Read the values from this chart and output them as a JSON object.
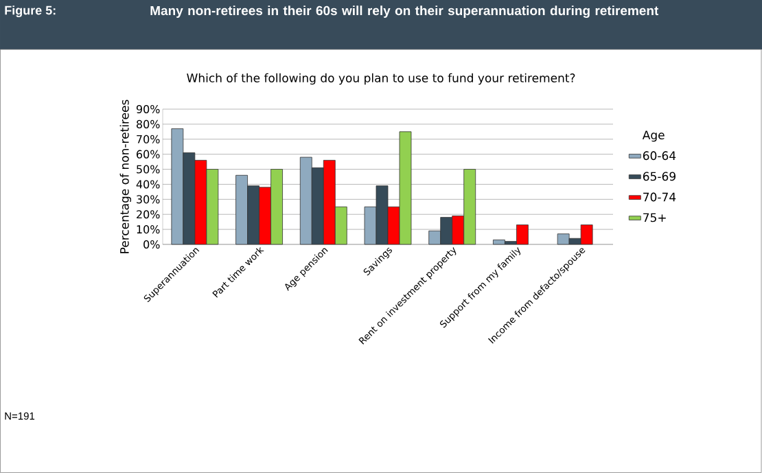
{
  "chart_data": {
    "type": "bar",
    "title": "Many non-retirees in their 60s will rely on their superannuation during retirement",
    "subtitle": "Which of the following do you plan to use to fund your retirement?",
    "ylabel": "Percentage of non-retirees",
    "legend_title": "Age",
    "categories": [
      "Superannuation",
      "Part time work",
      "Age pension",
      "Savings",
      "Rent on investment property",
      "Support from my family",
      "Income from defacto/spouse"
    ],
    "series": [
      {
        "name": "60-64",
        "color": "#8faabf",
        "values": [
          77,
          46,
          58,
          25,
          9,
          3,
          7
        ]
      },
      {
        "name": "65-69",
        "color": "#364b59",
        "values": [
          61,
          39,
          51,
          39,
          18,
          2,
          4
        ]
      },
      {
        "name": "70-74",
        "color": "#ff0000",
        "values": [
          56,
          38,
          56,
          25,
          19,
          13,
          13
        ]
      },
      {
        "name": "75+",
        "color": "#92d050",
        "values": [
          50,
          50,
          25,
          75,
          50,
          null,
          null
        ]
      }
    ],
    "ylim": [
      0,
      90
    ],
    "yticks": [
      {
        "value": 0,
        "label": "0%"
      },
      {
        "value": 10,
        "label": "10%"
      },
      {
        "value": 20,
        "label": "20%"
      },
      {
        "value": 30,
        "label": "30%"
      },
      {
        "value": 40,
        "label": "40%"
      },
      {
        "value": 50,
        "label": "50%"
      },
      {
        "value": 60,
        "label": "60%"
      },
      {
        "value": 70,
        "label": "70%"
      },
      {
        "value": 80,
        "label": "80%"
      },
      {
        "value": 90,
        "label": "90%"
      }
    ],
    "grid": "y",
    "legend": "right",
    "annotations": [
      "Figure 5:",
      "N=191"
    ]
  }
}
